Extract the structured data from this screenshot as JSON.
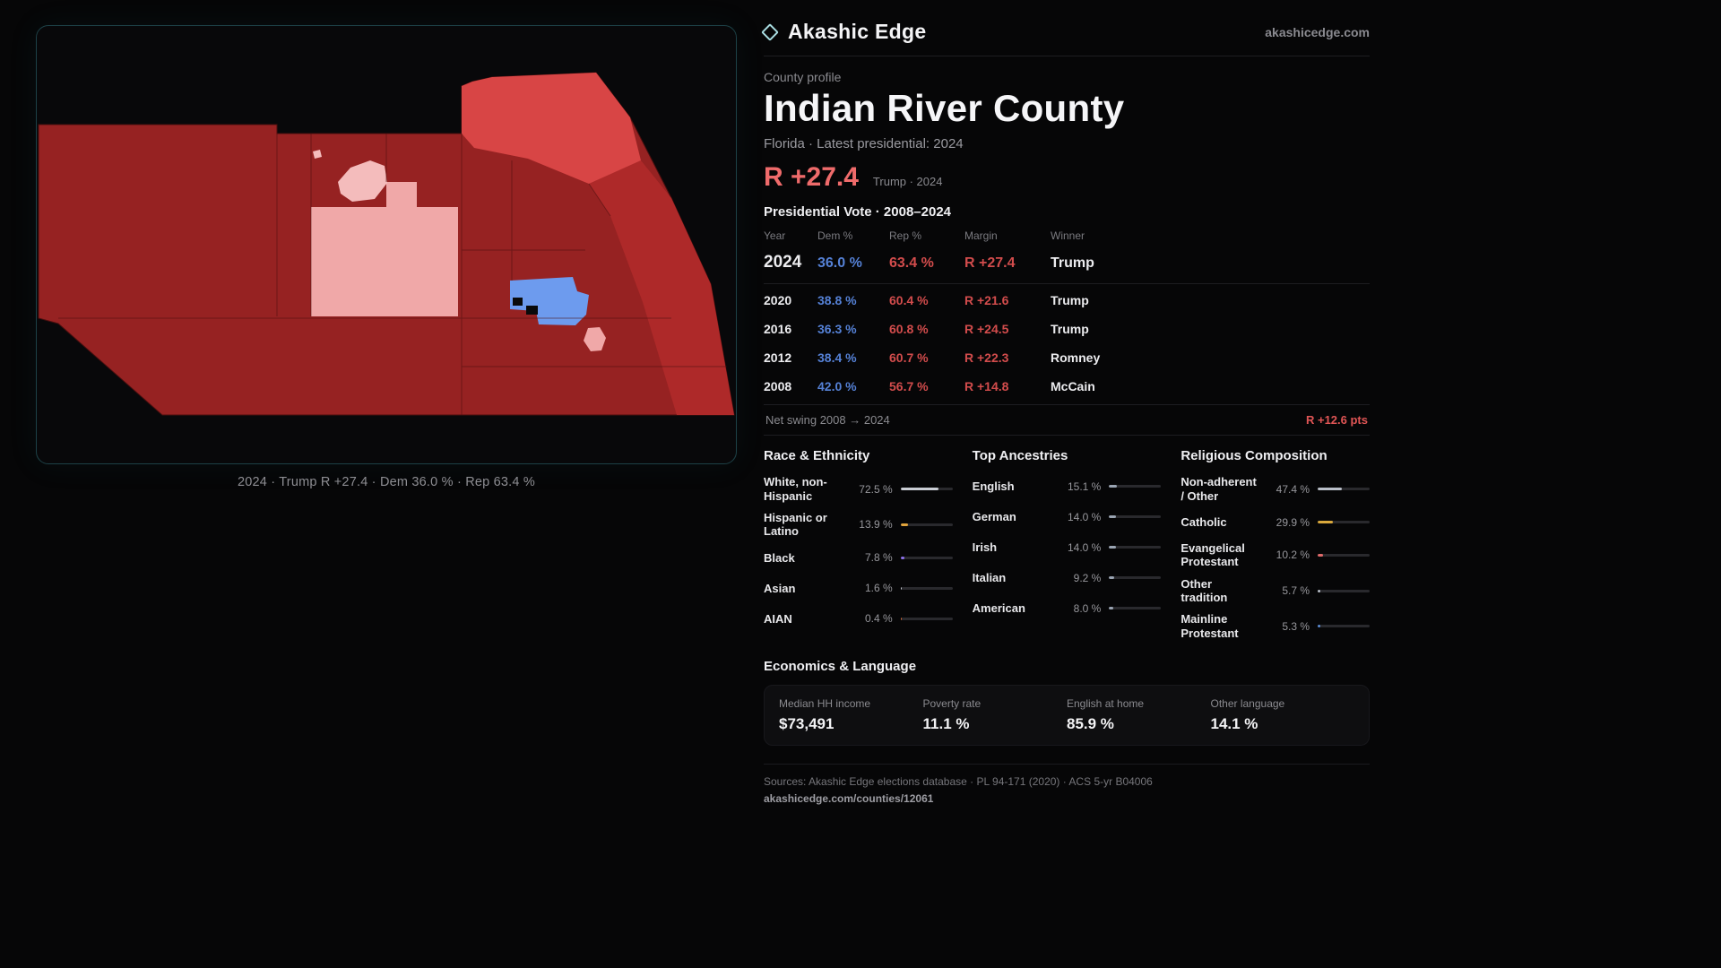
{
  "brand": {
    "name": "Akashic Edge",
    "site": "akashicedge.com"
  },
  "map": {
    "caption": "2024 · Trump R +27.4 · Dem 36.0 % · Rep 63.4 %"
  },
  "map_colors": {
    "base": "#962222",
    "coast": "#ae2929",
    "bright": "#d84545",
    "pink": "#f0a8a8",
    "pink_light": "#f4bcbc",
    "blue": "#6d9bee",
    "hole": "#0a0a0b",
    "line": "#4a0f0f",
    "outline": "#490f0f"
  },
  "accents": {
    "dem_blue": "#5581d6",
    "rep_red": "#d24c4c",
    "headline_red": "#ef6b6b",
    "swing_red": "#e05555",
    "brand_teal": "#a9dde2"
  },
  "profile": {
    "kicker": "County profile",
    "title": "Indian River County",
    "subtitle": "Florida · Latest presidential: 2024",
    "headline_margin": "R +27.4",
    "headline_note": "Trump · 2024",
    "table_title": "Presidential Vote · 2008–2024"
  },
  "vote_table": {
    "columns": [
      "Year",
      "Dem %",
      "Rep %",
      "Margin",
      "Winner"
    ],
    "rows": [
      {
        "year": "2024",
        "dem": "36.0 %",
        "rep": "63.4 %",
        "margin": "R +27.4",
        "winner": "Trump",
        "featured": true
      },
      {
        "year": "2020",
        "dem": "38.8 %",
        "rep": "60.4 %",
        "margin": "R +21.6",
        "winner": "Trump"
      },
      {
        "year": "2016",
        "dem": "36.3 %",
        "rep": "60.8 %",
        "margin": "R +24.5",
        "winner": "Trump"
      },
      {
        "year": "2012",
        "dem": "38.4 %",
        "rep": "60.7 %",
        "margin": "R +22.3",
        "winner": "Romney"
      },
      {
        "year": "2008",
        "dem": "42.0 %",
        "rep": "56.7 %",
        "margin": "R +14.8",
        "winner": "McCain"
      }
    ]
  },
  "net_swing": {
    "label": "Net swing 2008 → 2024",
    "value": "R +12.6 pts"
  },
  "demographics": {
    "race": {
      "title": "Race & Ethnicity",
      "items": [
        {
          "label": "White, non-Hispanic",
          "value": "72.5 %",
          "pct": 72.5,
          "color": "#c9cdd4"
        },
        {
          "label": "Hispanic or Latino",
          "value": "13.9 %",
          "pct": 13.9,
          "color": "#e0a33c"
        },
        {
          "label": "Black",
          "value": "7.8 %",
          "pct": 7.8,
          "color": "#8b6fe8"
        },
        {
          "label": "Asian",
          "value": "1.6 %",
          "pct": 1.6,
          "color": "#c9cdd4"
        },
        {
          "label": "AIAN",
          "value": "0.4 %",
          "pct": 0.4,
          "color": "#d96c3a"
        }
      ]
    },
    "ancestries": {
      "title": "Top Ancestries",
      "items": [
        {
          "label": "English",
          "value": "15.1 %",
          "pct": 15.1,
          "color": "#9aa4b2"
        },
        {
          "label": "German",
          "value": "14.0 %",
          "pct": 14.0,
          "color": "#9aa4b2"
        },
        {
          "label": "Irish",
          "value": "14.0 %",
          "pct": 14.0,
          "color": "#9aa4b2"
        },
        {
          "label": "Italian",
          "value": "9.2 %",
          "pct": 9.2,
          "color": "#9aa4b2"
        },
        {
          "label": "American",
          "value": "8.0 %",
          "pct": 8.0,
          "color": "#9aa4b2"
        }
      ]
    },
    "religion": {
      "title": "Religious Composition",
      "items": [
        {
          "label": "Non-adherent / Other",
          "value": "47.4 %",
          "pct": 47.4,
          "color": "#b9bec8"
        },
        {
          "label": "Catholic",
          "value": "29.9 %",
          "pct": 29.9,
          "color": "#d9a83c"
        },
        {
          "label": "Evangelical Protestant",
          "value": "10.2 %",
          "pct": 10.2,
          "color": "#e06a6a"
        },
        {
          "label": "Other tradition",
          "value": "5.7 %",
          "pct": 5.7,
          "color": "#b9bec8"
        },
        {
          "label": "Mainline Protestant",
          "value": "5.3 %",
          "pct": 5.3,
          "color": "#5b8dd9"
        }
      ]
    }
  },
  "economics": {
    "title": "Economics & Language",
    "stats": [
      {
        "label": "Median HH income",
        "value": "$73,491"
      },
      {
        "label": "Poverty rate",
        "value": "11.1 %"
      },
      {
        "label": "English at home",
        "value": "85.9 %"
      },
      {
        "label": "Other language",
        "value": "14.1 %"
      }
    ]
  },
  "footer": {
    "sources": "Sources: Akashic Edge elections database · PL 94-171 (2020) · ACS 5-yr B04006",
    "permalink": "akashicedge.com/counties/12061"
  }
}
